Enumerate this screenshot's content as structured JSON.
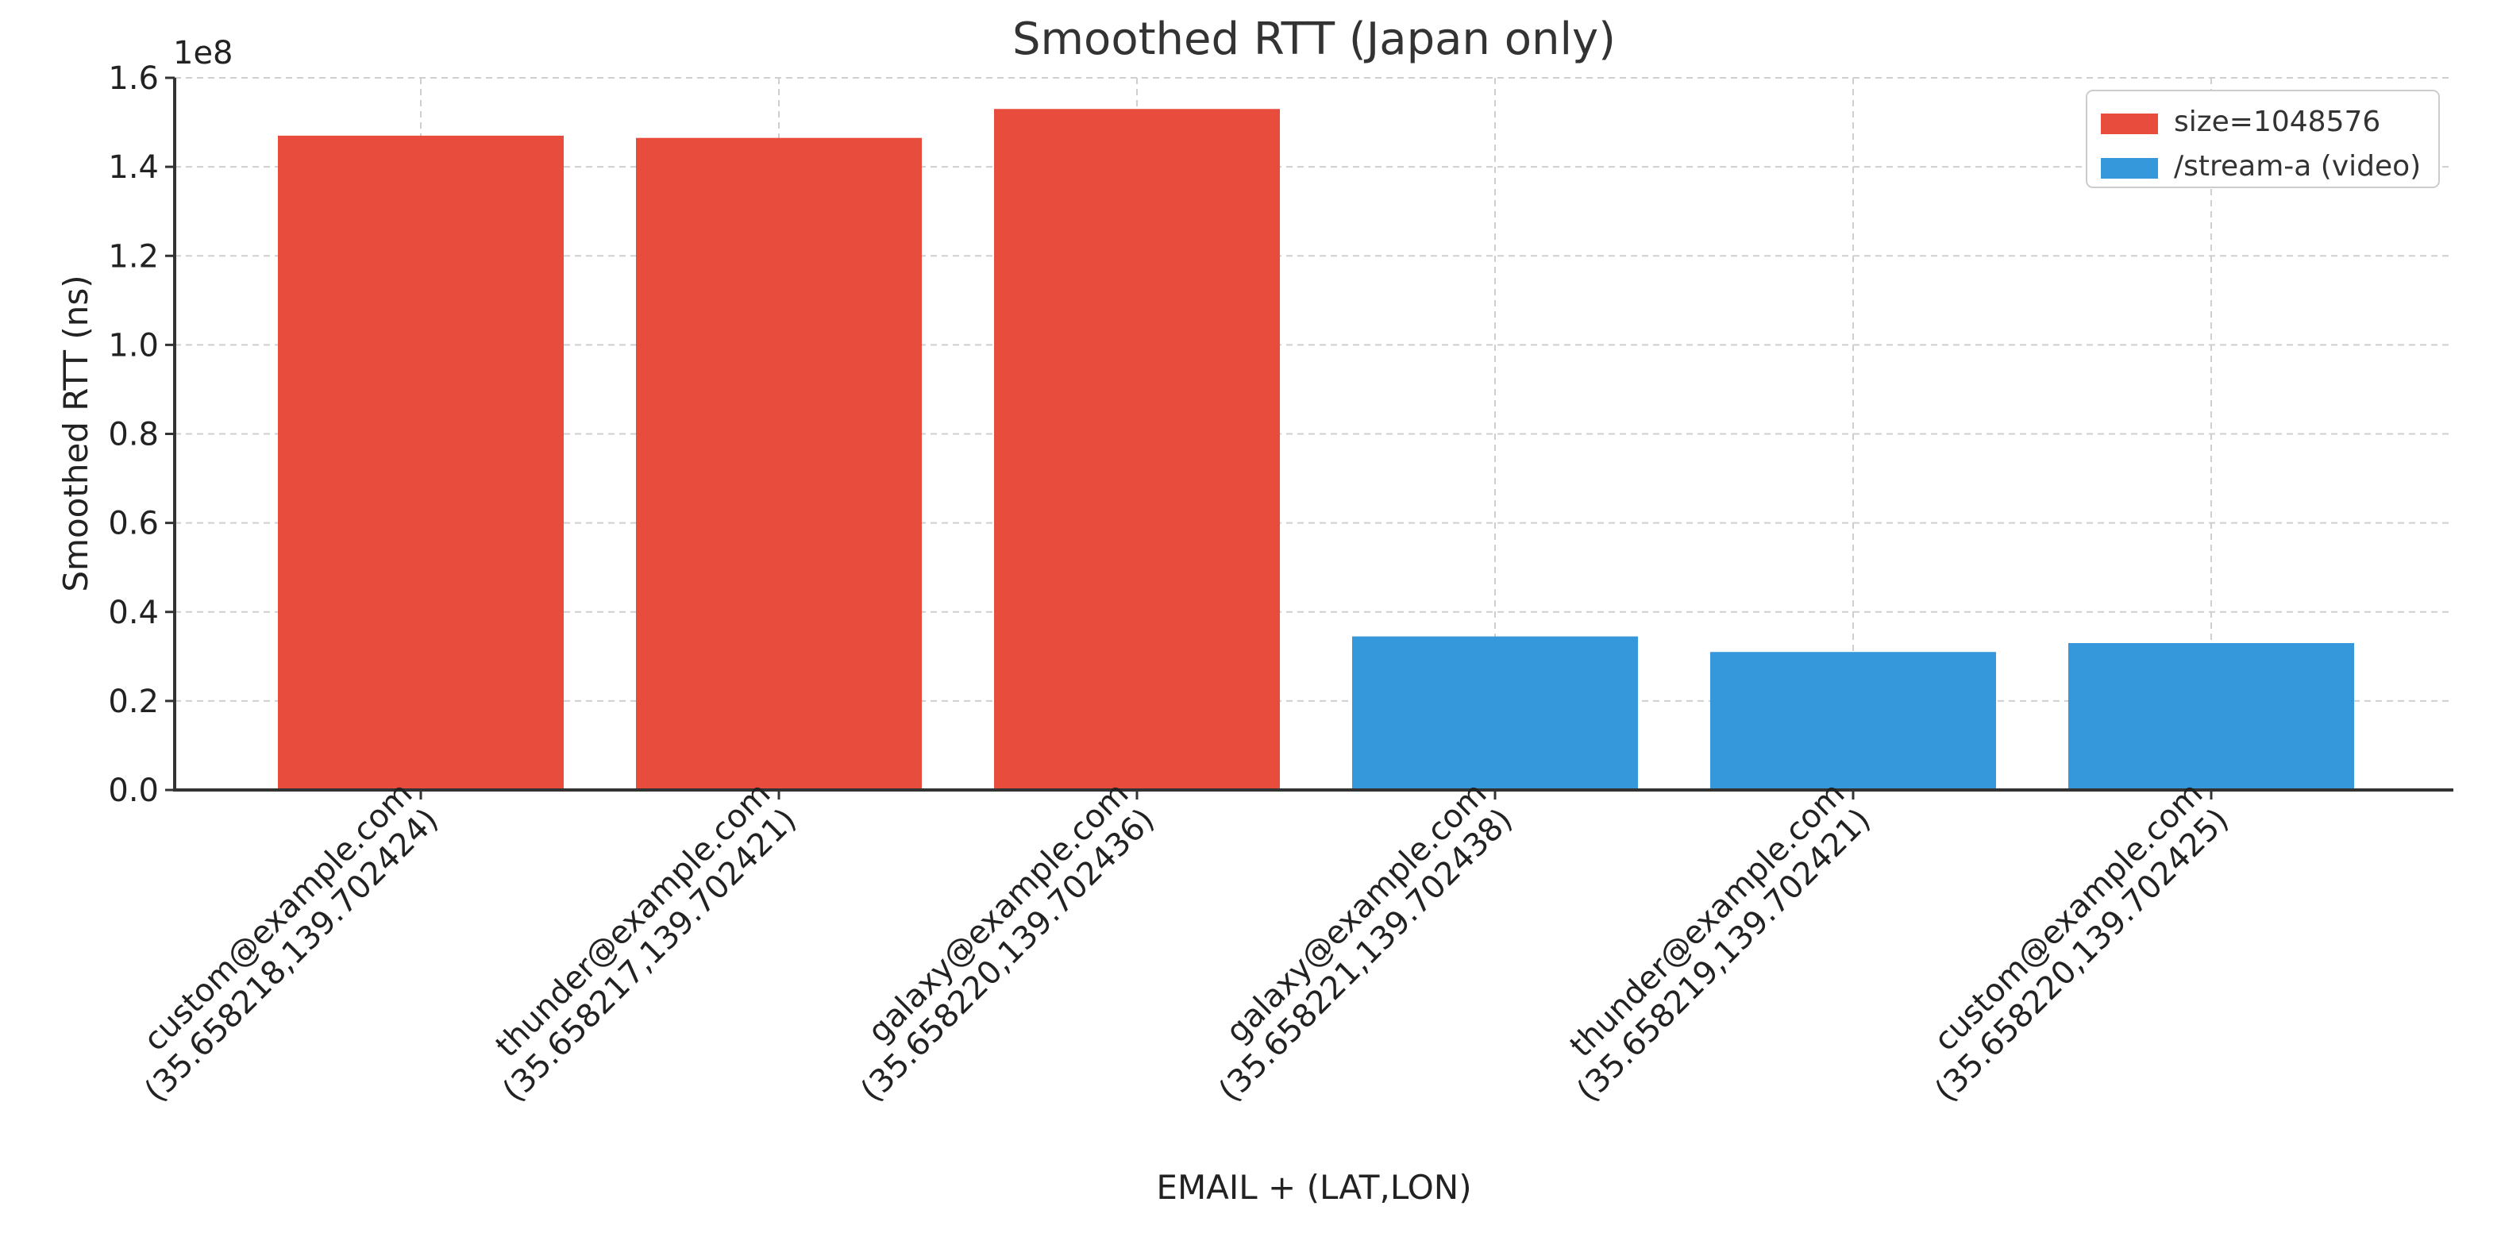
{
  "chart_data": {
    "type": "bar",
    "title": "Smoothed RTT (Japan only)",
    "xlabel": "EMAIL + (LAT,LON)",
    "ylabel": "Smoothed RTT (ns)",
    "y_offset_text": "1e8",
    "y_multiplier": 100000000,
    "ylim": [
      0,
      1.6
    ],
    "y_ticks": [
      0.0,
      0.2,
      0.4,
      0.6,
      0.8,
      1.0,
      1.2,
      1.4,
      1.6
    ],
    "y_tick_labels": [
      "0.0",
      "0.2",
      "0.4",
      "0.6",
      "0.8",
      "1.0",
      "1.2",
      "1.4",
      "1.6"
    ],
    "grid": true,
    "legend_position": "top-right",
    "categories": [
      "custom@example.com\n(35.658218,139.702424)",
      "thunder@example.com\n(35.658217,139.702421)",
      "galaxy@example.com\n(35.658220,139.702436)",
      "galaxy@example.com\n(35.658221,139.702438)",
      "thunder@example.com\n(35.658219,139.702421)",
      "custom@example.com\n(35.658220,139.702425)"
    ],
    "series": [
      {
        "name": "size=1048576",
        "color": "#e74c3c",
        "values": [
          1.47,
          1.465,
          1.53,
          null,
          null,
          null
        ]
      },
      {
        "name": "/stream-a (video)",
        "color": "#3498db",
        "values": [
          null,
          null,
          null,
          0.345,
          0.31,
          0.33
        ]
      }
    ]
  }
}
